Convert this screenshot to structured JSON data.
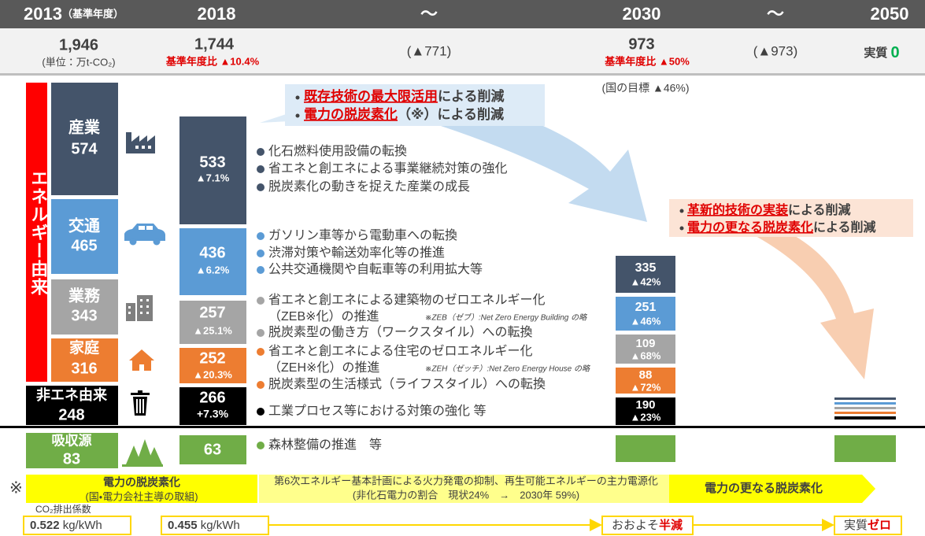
{
  "timeline": [
    "2013",
    "2018",
    "～",
    "2030",
    "～",
    "2050"
  ],
  "base_note": "（基準年度）",
  "summary": [
    {
      "value": "1,946",
      "note": "(単位：万t-CO₂)"
    },
    {
      "value": "1,744",
      "note": "基準年度比 ▲10.4%"
    },
    {
      "value": "(▲771)"
    },
    {
      "value": "973",
      "note": "基準年度比 ▲50%"
    },
    {
      "value": "(▲973)"
    },
    {
      "label": "実質",
      "value": "0"
    }
  ],
  "national_target": "(国の目標 ▲46%)",
  "energy_label": "エネルギー由来",
  "sectors_2013": [
    {
      "name": "産業",
      "value": "574"
    },
    {
      "name": "交通",
      "value": "465"
    },
    {
      "name": "業務",
      "value": "343"
    },
    {
      "name": "家庭",
      "value": "316"
    },
    {
      "name": "非エネ由来",
      "value": "248"
    },
    {
      "name": "吸収源",
      "value": "83"
    }
  ],
  "sectors_2018": [
    {
      "value": "533",
      "change": "▲7.1%"
    },
    {
      "value": "436",
      "change": "▲6.2%"
    },
    {
      "value": "257",
      "change": "▲25.1%"
    },
    {
      "value": "252",
      "change": "▲20.3%"
    },
    {
      "value": "266",
      "change": "+7.3%"
    },
    {
      "value": "63"
    }
  ],
  "sectors_2030": [
    {
      "value": "335",
      "change": "▲42%"
    },
    {
      "value": "251",
      "change": "▲46%"
    },
    {
      "value": "109",
      "change": "▲68%"
    },
    {
      "value": "88",
      "change": "▲72%"
    },
    {
      "value": "190",
      "change": "▲23%"
    }
  ],
  "measures": {
    "industry": [
      "化石燃料使用設備の転換",
      "省エネと創エネによる事業継続対策の強化",
      "脱炭素化の動きを捉えた産業の成長"
    ],
    "transport": [
      "ガソリン車等から電動車への転換",
      "渋滞対策や輸送効率化等の推進",
      "公共交通機関や自転車等の利用拡大等"
    ],
    "business": [
      "省エネと創エネによる建築物のゼロエネルギー化",
      "（ZEB※化）の推進",
      "脱炭素型の働き方（ワークスタイル）への転換"
    ],
    "business_note": "※ZEB（ゼブ）:Net Zero Energy Building の略",
    "household": [
      "省エネと創エネによる住宅のゼロエネルギー化",
      "（ZEH※化）の推進",
      "脱炭素型の生活様式（ライフスタイル）への転換"
    ],
    "household_note": "※ZEH（ゼッチ）:Net Zero Energy House の略",
    "non_energy": [
      "工業プロセス等における対策の強化 等"
    ],
    "sink": [
      "森林整備の推進　等"
    ]
  },
  "callout_1": [
    {
      "em": "既存技術の最大限活用",
      "rest": "による削減"
    },
    {
      "em": "電力の脱炭素化",
      "rest": "（※）による削減"
    }
  ],
  "callout_2": [
    {
      "em": "革新的技術の実装",
      "rest": "による削減"
    },
    {
      "em": "電力の更なる脱炭素化",
      "rest": "による削減"
    }
  ],
  "footnote_mark": "※",
  "electricity": {
    "phase1_title": "電力の脱炭素化",
    "phase1_sub": "(国・電力会社主導の取組)",
    "plan": [
      "第6次エネルギー基本計画による火力発電の抑制、再生可能エネルギーの主力電源化",
      "(非化石電力の割合　現状24%　→　2030年 59%)"
    ],
    "phase2_title": "電力の更なる脱炭素化"
  },
  "emission_factor": {
    "label": "CO₂排出係数",
    "values": [
      {
        "num": "0.522",
        "unit": " kg/kWh"
      },
      {
        "num": "0.455",
        "unit": " kg/kWh"
      }
    ],
    "half": {
      "a": "おおよそ",
      "b": "半減"
    },
    "zero": {
      "a": "実質",
      "b": "ゼロ"
    }
  }
}
